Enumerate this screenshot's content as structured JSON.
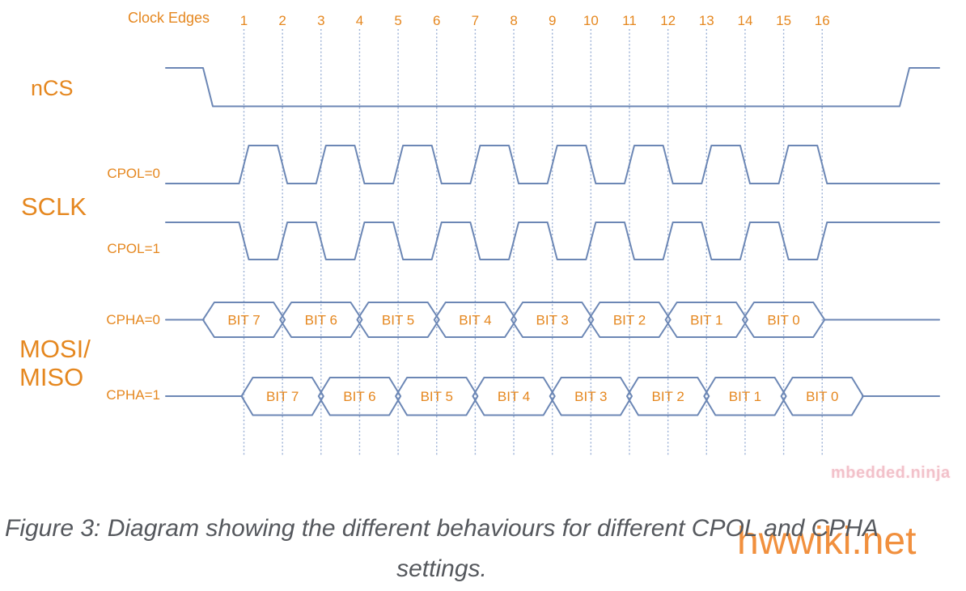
{
  "colors": {
    "orange": "#E5871F",
    "wave_blue": "#6C87B5",
    "grid_blue": "#9BB0D5",
    "caption_gray": "#55585D",
    "watermark_orange": "#F0872E",
    "watermark_pink": "#E79CA9"
  },
  "header": {
    "clock_edges_label": "Clock Edges",
    "edge_numbers": [
      "1",
      "2",
      "3",
      "4",
      "5",
      "6",
      "7",
      "8",
      "9",
      "10",
      "11",
      "12",
      "13",
      "14",
      "15",
      "16"
    ]
  },
  "signals": {
    "ncs": {
      "label": "nCS"
    },
    "sclk": {
      "label": "SCLK",
      "variants": [
        {
          "label": "CPOL=0",
          "idle_level": "low",
          "rises_on": "odd edges",
          "falls_on": "even edges"
        },
        {
          "label": "CPOL=1",
          "idle_level": "high",
          "falls_on": "odd edges",
          "rises_on": "even edges"
        }
      ]
    },
    "data_lines": {
      "label_line1": "MOSI/",
      "label_line2": "MISO",
      "variants": [
        {
          "label": "CPHA=0",
          "bit_boundaries_on": "even edges",
          "bits": [
            "BIT 7",
            "BIT 6",
            "BIT 5",
            "BIT 4",
            "BIT 3",
            "BIT 2",
            "BIT 1",
            "BIT 0"
          ]
        },
        {
          "label": "CPHA=1",
          "bit_boundaries_on": "odd edges",
          "bits": [
            "BIT 7",
            "BIT 6",
            "BIT 5",
            "BIT 4",
            "BIT 3",
            "BIT 2",
            "BIT 1",
            "BIT 0"
          ]
        }
      ]
    }
  },
  "watermarks": {
    "site_badge": "mbedded.ninja",
    "overlay": "hwwiki.net"
  },
  "caption": {
    "line1": "Figure 3: Diagram showing the different behaviours for different CPOL and CPHA",
    "line2": "settings."
  }
}
